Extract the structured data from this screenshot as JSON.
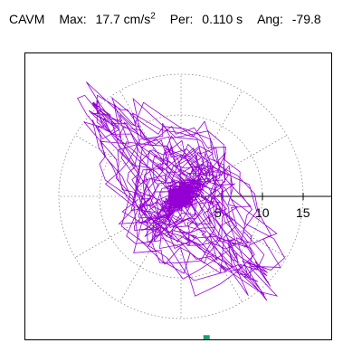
{
  "header": {
    "name": "CAVM",
    "max_label": "Max:",
    "max_value": "17.7 cm/s",
    "max_exp": "2",
    "per_label": "Per:",
    "per_value": "0.110 s",
    "ang_label": "Ang:",
    "ang_value": "-79.8"
  },
  "chart_data": {
    "type": "scatter",
    "title": "",
    "rings": [
      5,
      10,
      15
    ],
    "tick_labels": [
      "5",
      "10",
      "15"
    ],
    "angle_deg": -79.8,
    "max_radius_value": 17.7,
    "trace_color": "#9400d3",
    "marker_color": "#1e9e78",
    "grid": true
  }
}
